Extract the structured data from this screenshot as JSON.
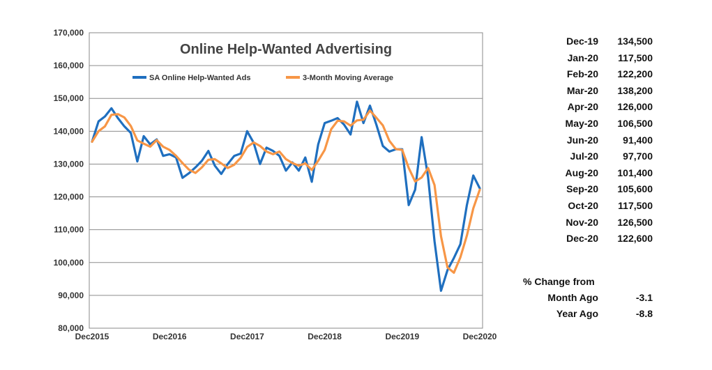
{
  "chart_data": {
    "type": "line",
    "title": "Online Help-Wanted Advertising",
    "ylim": [
      80000,
      170000
    ],
    "yticks": [
      "170,000",
      "160,000",
      "150,000",
      "140,000",
      "130,000",
      "120,000",
      "110,000",
      "100,000",
      "90,000",
      "80,000"
    ],
    "ytick_values": [
      170000,
      160000,
      150000,
      140000,
      130000,
      120000,
      110000,
      100000,
      90000,
      80000
    ],
    "xticks": [
      "Dec2015",
      "Dec2016",
      "Dec2017",
      "Dec2018",
      "Dec2019",
      "Dec2020"
    ],
    "xtick_index": [
      0,
      12,
      24,
      36,
      48,
      60
    ],
    "grid": true,
    "legend": "top-center",
    "series": [
      {
        "name": "SA Online Help-Wanted Ads",
        "color": "#1F6FBF",
        "values": [
          136800,
          143000,
          144500,
          147000,
          144000,
          141500,
          139500,
          130800,
          138500,
          136000,
          137500,
          132500,
          133000,
          132000,
          125800,
          127200,
          129000,
          131000,
          134000,
          129500,
          127000,
          130000,
          132500,
          133200,
          140000,
          136500,
          130000,
          135000,
          134000,
          132500,
          128000,
          130500,
          128000,
          132000,
          124600,
          136000,
          142500,
          143200,
          144000,
          142000,
          139000,
          149000,
          142500,
          147800,
          142000,
          135500,
          133800,
          134500,
          134500,
          117500,
          122200,
          138200,
          126000,
          106500,
          91400,
          97700,
          101400,
          105600,
          117500,
          126500,
          122600
        ]
      },
      {
        "name": "3-Month Moving Average",
        "color": "#F79646",
        "values": [
          136800,
          140000,
          141500,
          145000,
          145200,
          144200,
          141600,
          137200,
          136200,
          135300,
          137300,
          135300,
          134300,
          132500,
          130300,
          128300,
          127300,
          129000,
          131300,
          131500,
          130200,
          128800,
          129800,
          131900,
          135200,
          136600,
          135500,
          133800,
          133000,
          133800,
          131500,
          130300,
          129500,
          130200,
          128200,
          131000,
          134300,
          140600,
          143200,
          143000,
          141700,
          143300,
          143500,
          146300,
          144100,
          141800,
          137100,
          134600,
          134300,
          128800,
          124700,
          125900,
          128800,
          123600,
          108000,
          98500,
          96900,
          101600,
          108200,
          116500,
          122200
        ]
      }
    ],
    "table": {
      "rows": [
        {
          "month": "Dec-19",
          "value": "134,500"
        },
        {
          "month": "Jan-20",
          "value": "117,500"
        },
        {
          "month": "Feb-20",
          "value": "122,200"
        },
        {
          "month": "Mar-20",
          "value": "138,200"
        },
        {
          "month": "Apr-20",
          "value": "126,000"
        },
        {
          "month": "May-20",
          "value": "106,500"
        },
        {
          "month": "Jun-20",
          "value": "91,400"
        },
        {
          "month": "Jul-20",
          "value": "97,700"
        },
        {
          "month": "Aug-20",
          "value": "101,400"
        },
        {
          "month": "Sep-20",
          "value": "105,600"
        },
        {
          "month": "Oct-20",
          "value": "117,500"
        },
        {
          "month": "Nov-20",
          "value": "126,500"
        },
        {
          "month": "Dec-20",
          "value": "122,600"
        }
      ],
      "change_header": "% Change from",
      "changes": [
        {
          "label": "Month Ago",
          "value": "-3.1"
        },
        {
          "label": "Year Ago",
          "value": "-8.8"
        }
      ]
    }
  }
}
